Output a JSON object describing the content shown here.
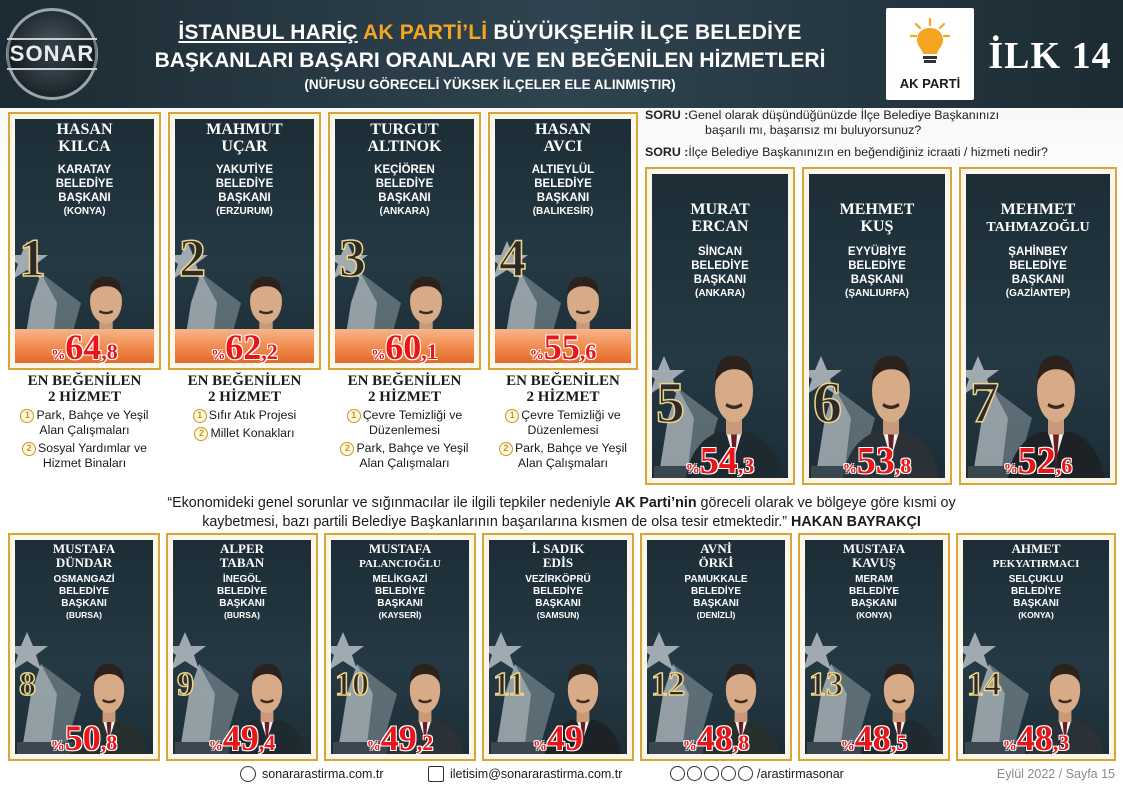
{
  "header": {
    "brand": "SONAR",
    "title_part1": "İSTANBUL HARİÇ",
    "title_part2": "AK PARTİ’Lİ",
    "title_part3": "BÜYÜKŞEHİR İLÇE BELEDİYE",
    "title_line2": "BAŞKANLARI BAŞARI ORANLARI VE EN BEĞENİLEN HİZMETLERİ",
    "title_line3": "(NÜFUSU GÖRECELİ YÜKSEK İLÇELER ELE ALINMIŞTIR)",
    "party_logo_text": "AK PARTİ",
    "badge": "İLK 14"
  },
  "questions": [
    {
      "label": "SORU :",
      "text_a": "Genel olarak düşündüğünüzde İlçe Belediye Başkanınızı",
      "text_b": "başarılı mı, başarısız mı buluyorsunuz?"
    },
    {
      "label": "SORU :",
      "text_a": "İlçe Belediye Başkanınızın en beğendiğiniz icraati / hizmeti nedir?",
      "text_b": ""
    }
  ],
  "services_heading_a": "EN BEĞENİLEN",
  "services_heading_b": "2 HİZMET",
  "mayors": [
    {
      "rank": "1",
      "first": "HASAN",
      "last": "KILCA",
      "district": "KARATAY",
      "role1": "BELEDİYE",
      "role2": "BAŞKANI",
      "city": "(KONYA)",
      "pct_sign": "%",
      "pct_int": "64",
      "pct_dec": ",8",
      "s1": "Park, Bahçe ve Yeşil Alan Çalışmaları",
      "s2": "Sosyal Yardımlar ve Hizmet Binaları"
    },
    {
      "rank": "2",
      "first": "MAHMUT",
      "last": "UÇAR",
      "district": "YAKUTİYE",
      "role1": "BELEDİYE",
      "role2": "BAŞKANI",
      "city": "(ERZURUM)",
      "pct_sign": "%",
      "pct_int": "62",
      "pct_dec": ",2",
      "s1": "Sıfır Atık Projesi",
      "s2": "Millet Konakları"
    },
    {
      "rank": "3",
      "first": "TURGUT",
      "last": "ALTINOK",
      "district": "KEÇİÖREN",
      "role1": "BELEDİYE",
      "role2": "BAŞKANI",
      "city": "(ANKARA)",
      "pct_sign": "%",
      "pct_int": "60",
      "pct_dec": ",1",
      "s1": "Çevre Temizliği ve Düzenlemesi",
      "s2": "Park, Bahçe ve Yeşil Alan Çalışmaları"
    },
    {
      "rank": "4",
      "first": "HASAN",
      "last": "AVCI",
      "district": "ALTIEYLÜL",
      "role1": "BELEDİYE",
      "role2": "BAŞKANI",
      "city": "(BALIKESİR)",
      "pct_sign": "%",
      "pct_int": "55",
      "pct_dec": ",6",
      "s1": "Çevre Temizliği ve Düzenlemesi",
      "s2": "Park, Bahçe ve Yeşil Alan Çalışmaları"
    },
    {
      "rank": "5",
      "first": "MURAT",
      "last": "ERCAN",
      "district": "SİNCAN",
      "role1": "BELEDİYE",
      "role2": "BAŞKANI",
      "city": "(ANKARA)",
      "pct_sign": "%",
      "pct_int": "54",
      "pct_dec": ",3"
    },
    {
      "rank": "6",
      "first": "MEHMET",
      "last": "KUŞ",
      "district": "EYYÜBİYE",
      "role1": "BELEDİYE",
      "role2": "BAŞKANI",
      "city": "(ŞANLIURFA)",
      "pct_sign": "%",
      "pct_int": "53",
      "pct_dec": ",8"
    },
    {
      "rank": "7",
      "first": "MEHMET",
      "last": "TAHMAZOĞLU",
      "district": "ŞAHİNBEY",
      "role1": "BELEDİYE",
      "role2": "BAŞKANI",
      "city": "(GAZİANTEP)",
      "pct_sign": "%",
      "pct_int": "52",
      "pct_dec": ",6"
    },
    {
      "rank": "8",
      "first": "MUSTAFA",
      "last": "DÜNDAR",
      "district": "OSMANGAZİ",
      "role1": "BELEDİYE",
      "role2": "BAŞKANI",
      "city": "(BURSA)",
      "pct_sign": "%",
      "pct_int": "50",
      "pct_dec": ",8"
    },
    {
      "rank": "9",
      "first": "ALPER",
      "last": "TABAN",
      "district": "İNEGÖL",
      "role1": "BELEDİYE",
      "role2": "BAŞKANI",
      "city": "(BURSA)",
      "pct_sign": "%",
      "pct_int": "49",
      "pct_dec": ",4"
    },
    {
      "rank": "10",
      "first": "MUSTAFA",
      "last": "PALANCIOĞLU",
      "district": "MELİKGAZİ",
      "role1": "BELEDİYE",
      "role2": "BAŞKANI",
      "city": "(KAYSERİ)",
      "pct_sign": "%",
      "pct_int": "49",
      "pct_dec": ",2"
    },
    {
      "rank": "11",
      "first": "İ. SADIK",
      "last": "EDİS",
      "district": "VEZİRKÖPRÜ",
      "role1": "BELEDİYE",
      "role2": "BAŞKANI",
      "city": "(SAMSUN)",
      "pct_sign": "%",
      "pct_int": "49",
      "pct_dec": ""
    },
    {
      "rank": "12",
      "first": "AVNİ",
      "last": "ÖRKİ",
      "district": "PAMUKKALE",
      "role1": "BELEDİYE",
      "role2": "BAŞKANI",
      "city": "(DENİZLİ)",
      "pct_sign": "%",
      "pct_int": "48",
      "pct_dec": ",8"
    },
    {
      "rank": "13",
      "first": "MUSTAFA",
      "last": "KAVUŞ",
      "district": "MERAM",
      "role1": "BELEDİYE",
      "role2": "BAŞKANI",
      "city": "(KONYA)",
      "pct_sign": "%",
      "pct_int": "48",
      "pct_dec": ",5"
    },
    {
      "rank": "14",
      "first": "AHMET",
      "last": "PEKYATIRMACI",
      "district": "SELÇUKLU",
      "role1": "BELEDİYE",
      "role2": "BAŞKANI",
      "city": "(KONYA)",
      "pct_sign": "%",
      "pct_int": "48",
      "pct_dec": ",3"
    }
  ],
  "quote": {
    "a": "“Ekonomideki genel sorunlar ve sığınmacılar ile ilgili tepkiler nedeniyle ",
    "b": "AK Parti’nin",
    "c": " göreceli olarak ve bölgeye göre kısmi oy",
    "d": "kaybetmesi, bazı partili Belediye Başkanlarının başarılarına kısmen de olsa tesir etmektedir.” ",
    "e": "HAKAN BAYRAKÇI"
  },
  "footer": {
    "website": "sonararastirma.com.tr",
    "email": "iletisim@sonararastirma.com.tr",
    "social": "/arastirmasonar",
    "date_page": "Eylül 2022 / Sayfa 15"
  },
  "colors": {
    "accent_gold": "#d9a537",
    "dark_panel": "#1c2d36",
    "pct_red": "#e8161b",
    "ak_orange": "#f4a521"
  }
}
